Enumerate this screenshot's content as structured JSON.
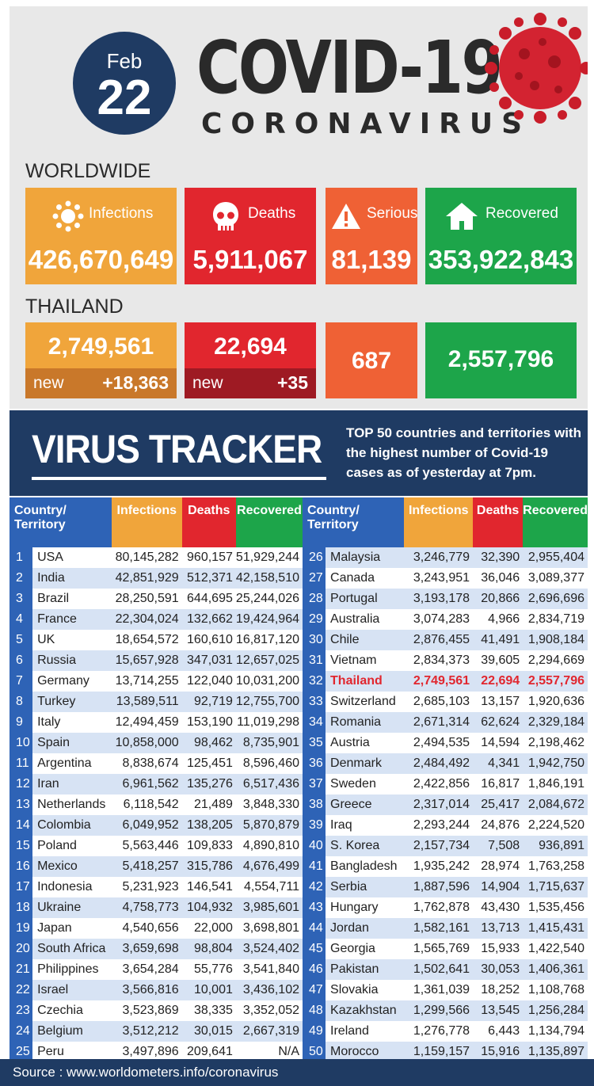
{
  "header": {
    "month": "Feb",
    "day": "22",
    "title": "COVID-19",
    "subtitle": "CORONAVIRUS"
  },
  "worldwide": {
    "label": "WORLDWIDE",
    "infections": {
      "label": "Infections",
      "value": "426,670,649"
    },
    "deaths": {
      "label": "Deaths",
      "value": "5,911,067"
    },
    "serious": {
      "label": "Serious",
      "value": "81,139"
    },
    "recovered": {
      "label": "Recovered",
      "value": "353,922,843"
    }
  },
  "thailand": {
    "label": "THAILAND",
    "infections": {
      "value": "2,749,561",
      "new_label": "new",
      "new_value": "+18,363"
    },
    "deaths": {
      "value": "22,694",
      "new_label": "new",
      "new_value": "+35"
    },
    "serious": {
      "value": "687"
    },
    "recovered": {
      "value": "2,557,796"
    }
  },
  "tracker": {
    "title": "VIRUS TRACKER",
    "desc_bold": "TOP 50",
    "desc_rest": " countries and territories with the highest number of Covid-19 cases as of yesterday at 7pm."
  },
  "colors": {
    "navy": "#1f3b63",
    "blue": "#2e63b6",
    "orange": "#f0a53b",
    "red": "#e1262e",
    "orangered": "#ef6135",
    "green": "#1da54a"
  },
  "chart_data": {
    "type": "table",
    "columns": [
      "Country/ Territory",
      "Infections",
      "Deaths",
      "Recovered"
    ],
    "rows": [
      [
        "1",
        "USA",
        "80,145,282",
        "960,157",
        "51,929,244"
      ],
      [
        "2",
        "India",
        "42,851,929",
        "512,371",
        "42,158,510"
      ],
      [
        "3",
        "Brazil",
        "28,250,591",
        "644,695",
        "25,244,026"
      ],
      [
        "4",
        "France",
        "22,304,024",
        "132,662",
        "19,424,964"
      ],
      [
        "5",
        "UK",
        "18,654,572",
        "160,610",
        "16,817,120"
      ],
      [
        "6",
        "Russia",
        "15,657,928",
        "347,031",
        "12,657,025"
      ],
      [
        "7",
        "Germany",
        "13,714,255",
        "122,040",
        "10,031,200"
      ],
      [
        "8",
        "Turkey",
        "13,589,511",
        "92,719",
        "12,755,700"
      ],
      [
        "9",
        "Italy",
        "12,494,459",
        "153,190",
        "11,019,298"
      ],
      [
        "10",
        "Spain",
        "10,858,000",
        "98,462",
        "8,735,901"
      ],
      [
        "11",
        "Argentina",
        "8,838,674",
        "125,451",
        "8,596,460"
      ],
      [
        "12",
        "Iran",
        "6,961,562",
        "135,276",
        "6,517,436"
      ],
      [
        "13",
        "Netherlands",
        "6,118,542",
        "21,489",
        "3,848,330"
      ],
      [
        "14",
        "Colombia",
        "6,049,952",
        "138,205",
        "5,870,879"
      ],
      [
        "15",
        "Poland",
        "5,563,446",
        "109,833",
        "4,890,810"
      ],
      [
        "16",
        "Mexico",
        "5,418,257",
        "315,786",
        "4,676,499"
      ],
      [
        "17",
        "Indonesia",
        "5,231,923",
        "146,541",
        "4,554,711"
      ],
      [
        "18",
        "Ukraine",
        "4,758,773",
        "104,932",
        "3,985,601"
      ],
      [
        "19",
        "Japan",
        "4,540,656",
        "22,000",
        "3,698,801"
      ],
      [
        "20",
        "South Africa",
        "3,659,698",
        "98,804",
        "3,524,402"
      ],
      [
        "21",
        "Philippines",
        "3,654,284",
        "55,776",
        "3,541,840"
      ],
      [
        "22",
        "Israel",
        "3,566,816",
        "10,001",
        "3,436,102"
      ],
      [
        "23",
        "Czechia",
        "3,523,869",
        "38,335",
        "3,352,052"
      ],
      [
        "24",
        "Belgium",
        "3,512,212",
        "30,015",
        "2,667,319"
      ],
      [
        "25",
        "Peru",
        "3,497,896",
        "209,641",
        "N/A"
      ],
      [
        "26",
        "Malaysia",
        "3,246,779",
        "32,390",
        "2,955,404"
      ],
      [
        "27",
        "Canada",
        "3,243,951",
        "36,046",
        "3,089,377"
      ],
      [
        "28",
        "Portugal",
        "3,193,178",
        "20,866",
        "2,696,696"
      ],
      [
        "29",
        "Australia",
        "3,074,283",
        "4,966",
        "2,834,719"
      ],
      [
        "30",
        "Chile",
        "2,876,455",
        "41,491",
        "1,908,184"
      ],
      [
        "31",
        "Vietnam",
        "2,834,373",
        "39,605",
        "2,294,669"
      ],
      [
        "32",
        "Thailand",
        "2,749,561",
        "22,694",
        "2,557,796"
      ],
      [
        "33",
        "Switzerland",
        "2,685,103",
        "13,157",
        "1,920,636"
      ],
      [
        "34",
        "Romania",
        "2,671,314",
        "62,624",
        "2,329,184"
      ],
      [
        "35",
        "Austria",
        "2,494,535",
        "14,594",
        "2,198,462"
      ],
      [
        "36",
        "Denmark",
        "2,484,492",
        "4,341",
        "1,942,750"
      ],
      [
        "37",
        "Sweden",
        "2,422,856",
        "16,817",
        "1,846,191"
      ],
      [
        "38",
        "Greece",
        "2,317,014",
        "25,417",
        "2,084,672"
      ],
      [
        "39",
        "Iraq",
        "2,293,244",
        "24,876",
        "2,224,520"
      ],
      [
        "40",
        "S. Korea",
        "2,157,734",
        "7,508",
        "936,891"
      ],
      [
        "41",
        "Bangladesh",
        "1,935,242",
        "28,974",
        "1,763,258"
      ],
      [
        "42",
        "Serbia",
        "1,887,596",
        "14,904",
        "1,715,637"
      ],
      [
        "43",
        "Hungary",
        "1,762,878",
        "43,430",
        "1,535,456"
      ],
      [
        "44",
        "Jordan",
        "1,582,161",
        "13,713",
        "1,415,431"
      ],
      [
        "45",
        "Georgia",
        "1,565,769",
        "15,933",
        "1,422,540"
      ],
      [
        "46",
        "Pakistan",
        "1,502,641",
        "30,053",
        "1,406,361"
      ],
      [
        "47",
        "Slovakia",
        "1,361,039",
        "18,252",
        "1,108,768"
      ],
      [
        "48",
        "Kazakhstan",
        "1,299,566",
        "13,545",
        "1,256,284"
      ],
      [
        "49",
        "Ireland",
        "1,276,778",
        "6,443",
        "1,134,794"
      ],
      [
        "50",
        "Morocco",
        "1,159,157",
        "15,916",
        "1,135,897"
      ]
    ],
    "highlight_country": "Thailand"
  },
  "source": "Source : www.worldometers.info/coronavirus"
}
